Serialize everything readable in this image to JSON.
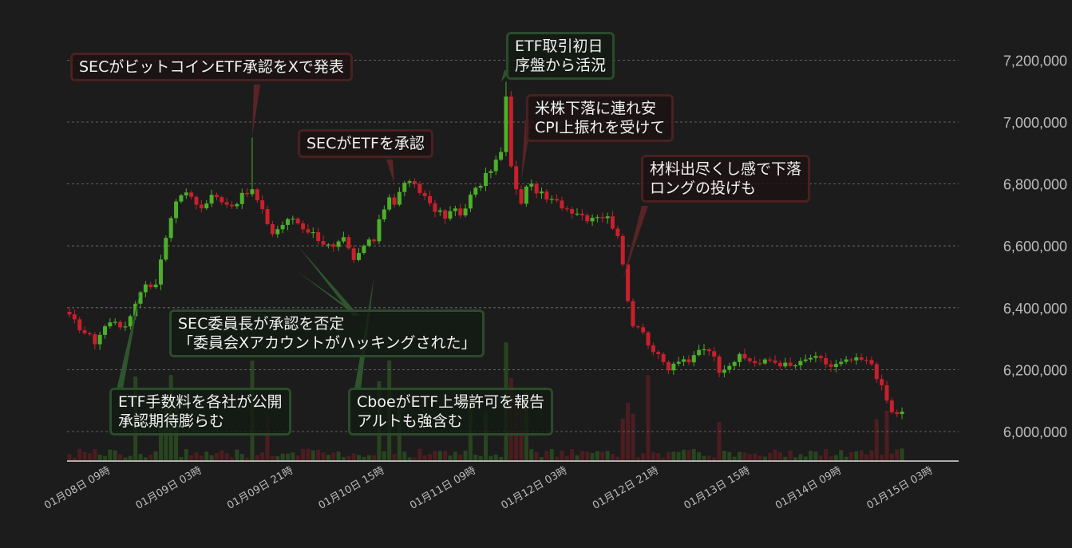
{
  "chart_data": {
    "type": "candlestick",
    "title": "",
    "xlabel": "",
    "ylabel": "",
    "ylim": [
      5900000,
      7260000
    ],
    "y_ticks": [
      6000000,
      6200000,
      6400000,
      6600000,
      6800000,
      7000000,
      7200000
    ],
    "y_tick_labels": [
      "6,000,000",
      "6,200,000",
      "6,400,000",
      "6,600,000",
      "6,800,000",
      "7,000,000",
      "7,200,000"
    ],
    "x_tick_labels": [
      "01月08日 09時",
      "01月09日 03時",
      "01月09日 21時",
      "01月10日 15時",
      "01月11日 09時",
      "01月12日 03時",
      "01月12日 21時",
      "01月13日 15時",
      "01月14日 09時",
      "01月15日 03時"
    ],
    "x_tick_index": [
      0,
      18,
      36,
      54,
      72,
      90,
      108,
      126,
      144,
      162
    ],
    "grid": "horizontal dashed",
    "colors": {
      "up": "#4caf2a",
      "down": "#c8202c",
      "grid": "#777777",
      "axis": "#dddddd",
      "text": "#bbbbbb"
    },
    "path": [
      [
        0,
        6370000
      ],
      [
        3,
        6320000
      ],
      [
        5,
        6290000
      ],
      [
        7,
        6340000
      ],
      [
        9,
        6360000
      ],
      [
        11,
        6330000
      ],
      [
        13,
        6420000
      ],
      [
        15,
        6480000
      ],
      [
        17,
        6470000
      ],
      [
        18,
        6560000
      ],
      [
        20,
        6700000
      ],
      [
        22,
        6770000
      ],
      [
        24,
        6760000
      ],
      [
        26,
        6720000
      ],
      [
        28,
        6760000
      ],
      [
        30,
        6750000
      ],
      [
        32,
        6730000
      ],
      [
        34,
        6760000
      ],
      [
        36,
        6780000
      ],
      [
        38,
        6710000
      ],
      [
        40,
        6640000
      ],
      [
        42,
        6670000
      ],
      [
        44,
        6690000
      ],
      [
        46,
        6660000
      ],
      [
        48,
        6640000
      ],
      [
        50,
        6610000
      ],
      [
        52,
        6590000
      ],
      [
        54,
        6620000
      ],
      [
        56,
        6550000
      ],
      [
        58,
        6600000
      ],
      [
        60,
        6620000
      ],
      [
        61,
        6690000
      ],
      [
        63,
        6760000
      ],
      [
        64,
        6730000
      ],
      [
        66,
        6810000
      ],
      [
        68,
        6790000
      ],
      [
        70,
        6760000
      ],
      [
        72,
        6720000
      ],
      [
        74,
        6690000
      ],
      [
        76,
        6720000
      ],
      [
        77,
        6700000
      ],
      [
        79,
        6760000
      ],
      [
        81,
        6800000
      ],
      [
        83,
        6850000
      ],
      [
        85,
        6900000
      ],
      [
        86,
        7080000
      ],
      [
        87,
        6850000
      ],
      [
        89,
        6730000
      ],
      [
        90,
        6800000
      ],
      [
        92,
        6780000
      ],
      [
        94,
        6750000
      ],
      [
        96,
        6740000
      ],
      [
        98,
        6720000
      ],
      [
        100,
        6710000
      ],
      [
        102,
        6690000
      ],
      [
        104,
        6700000
      ],
      [
        106,
        6690000
      ],
      [
        108,
        6640000
      ],
      [
        109,
        6530000
      ],
      [
        110,
        6420000
      ],
      [
        111,
        6350000
      ],
      [
        113,
        6330000
      ],
      [
        114,
        6280000
      ],
      [
        116,
        6240000
      ],
      [
        118,
        6200000
      ],
      [
        120,
        6230000
      ],
      [
        122,
        6220000
      ],
      [
        124,
        6270000
      ],
      [
        126,
        6270000
      ],
      [
        128,
        6200000
      ],
      [
        130,
        6220000
      ],
      [
        132,
        6240000
      ],
      [
        134,
        6230000
      ],
      [
        136,
        6220000
      ],
      [
        138,
        6230000
      ],
      [
        140,
        6220000
      ],
      [
        142,
        6210000
      ],
      [
        144,
        6220000
      ],
      [
        146,
        6240000
      ],
      [
        148,
        6230000
      ],
      [
        150,
        6210000
      ],
      [
        152,
        6220000
      ],
      [
        154,
        6230000
      ],
      [
        156,
        6230000
      ],
      [
        158,
        6220000
      ],
      [
        159,
        6180000
      ],
      [
        160,
        6140000
      ],
      [
        162,
        6060000
      ]
    ],
    "spikes": [
      [
        36,
        6950000
      ],
      [
        63,
        6590000
      ],
      [
        86,
        7130000
      ]
    ],
    "annotations": [
      {
        "id": "a1",
        "color": "red",
        "lines": [
          "SECがビットコインETF承認をXで発表"
        ],
        "pointer_index": 36,
        "pointer_value": 6950000
      },
      {
        "id": "a2",
        "color": "green",
        "lines": [
          "ETF取引初日",
          "序盤から活況"
        ],
        "pointer_index": 85,
        "pointer_value": 7130000
      },
      {
        "id": "a3",
        "color": "red",
        "lines": [
          "米株下落に連れ安",
          "CPI上振れを受けて"
        ],
        "pointer_index": 89,
        "pointer_value": 6810000
      },
      {
        "id": "a4",
        "color": "red",
        "lines": [
          "SECがETFを承認"
        ],
        "pointer_index": 64,
        "pointer_value": 6800000
      },
      {
        "id": "a5",
        "color": "red",
        "lines": [
          "材料出尽くし感で下落",
          "ロングの投げも"
        ],
        "pointer_index": 109,
        "pointer_value": 6490000
      },
      {
        "id": "a6",
        "color": "green",
        "lines": [
          "SEC委員長が承認を否定",
          "「委員会Xアカウントがハッキングされた」"
        ],
        "pointer_index": 45,
        "pointer_value": 6600000
      },
      {
        "id": "a7",
        "color": "green",
        "lines": [
          "ETF手数料を各社が公開",
          "承認期待膨らむ"
        ],
        "pointer_index": 14,
        "pointer_value": 6460000
      },
      {
        "id": "a8",
        "color": "green",
        "lines": [
          "CboeがETF上場許可を報告",
          "アルトも強含む"
        ],
        "pointer_index": 60,
        "pointer_value": 6500000
      }
    ]
  }
}
